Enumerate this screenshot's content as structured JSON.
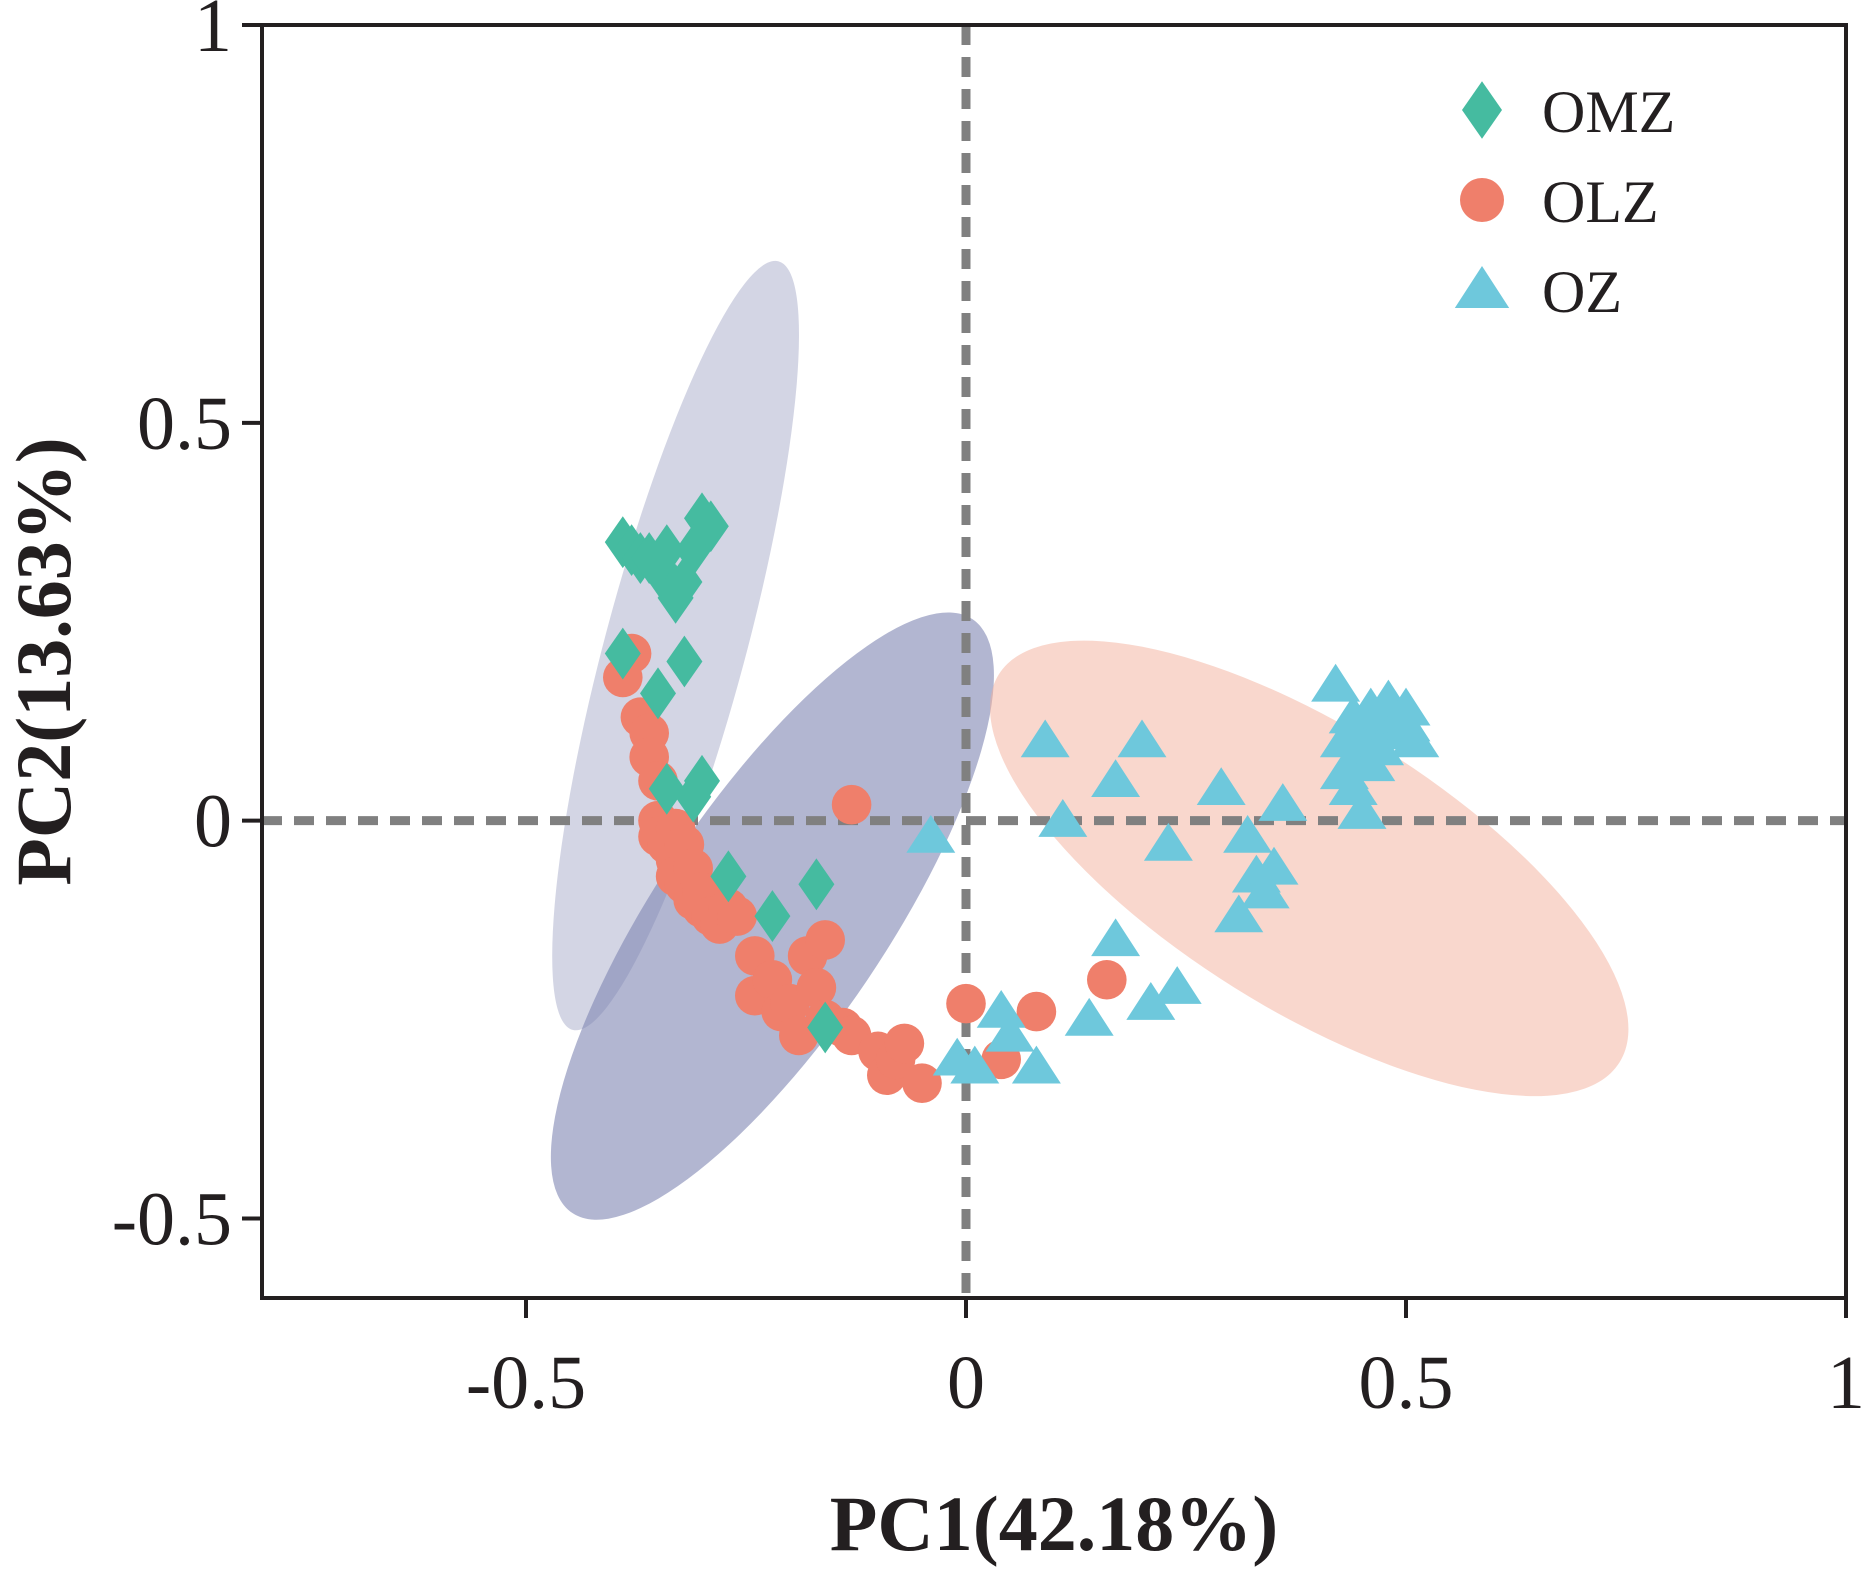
{
  "chart_data": {
    "type": "scatter",
    "title": "",
    "xlabel": "PC1(42.18%)",
    "ylabel": "PC2(13.63%)",
    "xlim": [
      -0.8,
      1.0
    ],
    "ylim": [
      -0.6,
      1.0
    ],
    "xticks": [
      -0.5,
      0,
      0.5,
      1
    ],
    "yticks": [
      -0.5,
      0,
      0.5,
      1
    ],
    "xtick_labels": [
      "-0.5",
      "0",
      "0.5",
      "1"
    ],
    "ytick_labels": [
      "-0.5",
      "0",
      "0.5",
      "1"
    ],
    "grid": false,
    "reference_lines": [
      {
        "axis": "x",
        "value": 0
      },
      {
        "axis": "y",
        "value": 0
      }
    ],
    "legend_position": "top-right",
    "series": [
      {
        "name": "OMZ",
        "marker": "diamond",
        "color": "#45bba0",
        "x": [
          -0.39,
          -0.38,
          -0.37,
          -0.36,
          -0.35,
          -0.34,
          -0.33,
          -0.32,
          -0.3,
          -0.31,
          -0.29,
          -0.34,
          -0.33,
          -0.39,
          -0.35,
          -0.32,
          -0.34,
          -0.31,
          -0.3,
          -0.27,
          -0.22,
          -0.17,
          -0.16
        ],
        "y": [
          0.35,
          0.34,
          0.33,
          0.33,
          0.32,
          0.3,
          0.28,
          0.3,
          0.38,
          0.34,
          0.37,
          0.34,
          0.29,
          0.21,
          0.16,
          0.2,
          0.04,
          0.03,
          0.05,
          -0.07,
          -0.12,
          -0.08,
          -0.26
        ]
      },
      {
        "name": "OLZ",
        "marker": "circle",
        "color": "#ef7f6b",
        "x": [
          -0.38,
          -0.39,
          -0.37,
          -0.36,
          -0.36,
          -0.35,
          -0.35,
          -0.35,
          -0.34,
          -0.33,
          -0.33,
          -0.33,
          -0.32,
          -0.32,
          -0.31,
          -0.31,
          -0.3,
          -0.3,
          -0.29,
          -0.28,
          -0.27,
          -0.26,
          -0.24,
          -0.24,
          -0.22,
          -0.21,
          -0.18,
          -0.16,
          -0.2,
          -0.19,
          -0.17,
          -0.16,
          -0.14,
          -0.13,
          -0.1,
          -0.09,
          -0.08,
          -0.07,
          -0.05,
          -0.13,
          0.0,
          0.04,
          0.08,
          0.16
        ],
        "y": [
          0.21,
          0.18,
          0.13,
          0.11,
          0.08,
          0.05,
          0.0,
          -0.02,
          -0.03,
          -0.05,
          -0.07,
          -0.01,
          -0.08,
          -0.03,
          -0.1,
          -0.06,
          -0.11,
          -0.09,
          -0.12,
          -0.13,
          -0.11,
          -0.12,
          -0.17,
          -0.22,
          -0.2,
          -0.24,
          -0.17,
          -0.15,
          -0.23,
          -0.27,
          -0.21,
          -0.25,
          -0.26,
          -0.27,
          -0.29,
          -0.32,
          -0.3,
          -0.28,
          -0.33,
          0.02,
          -0.23,
          -0.3,
          -0.24,
          -0.2
        ]
      },
      {
        "name": "OZ",
        "marker": "triangle",
        "color": "#6ec8dc",
        "x": [
          -0.04,
          0.09,
          0.11,
          0.17,
          0.2,
          0.23,
          0.29,
          0.32,
          0.33,
          0.34,
          0.35,
          0.36,
          0.31,
          0.17,
          0.14,
          0.21,
          0.24,
          0.04,
          0.05,
          -0.01,
          0.01,
          0.08,
          0.42,
          0.43,
          0.44,
          0.45,
          0.46,
          0.47,
          0.48,
          0.49,
          0.5,
          0.51,
          0.45,
          0.47,
          0.43,
          0.44,
          0.46,
          0.48,
          0.5,
          0.45
        ],
        "y": [
          -0.02,
          0.1,
          0.0,
          0.05,
          0.1,
          -0.03,
          0.04,
          -0.02,
          -0.07,
          -0.09,
          -0.06,
          0.02,
          -0.12,
          -0.15,
          -0.25,
          -0.23,
          -0.21,
          -0.24,
          -0.27,
          -0.3,
          -0.31,
          -0.31,
          0.17,
          0.1,
          0.13,
          0.11,
          0.14,
          0.12,
          0.13,
          0.11,
          0.12,
          0.1,
          0.08,
          0.09,
          0.06,
          0.04,
          0.07,
          0.15,
          0.14,
          0.01
        ]
      }
    ],
    "confidence_ellipses": [
      {
        "group": "OMZ",
        "color": "#a7acc9",
        "opacity": 0.5,
        "center": [
          -0.33,
          0.22
        ],
        "semi_axes": [
          0.08,
          0.5
        ],
        "angle_deg": 15
      },
      {
        "group": "OLZ",
        "color": "#7e86b3",
        "opacity": 0.6,
        "center": [
          -0.22,
          -0.12
        ],
        "semi_axes": [
          0.13,
          0.45
        ],
        "angle_deg": 34
      },
      {
        "group": "OZ",
        "color": "#f4b09c",
        "opacity": 0.5,
        "center": [
          0.39,
          -0.06
        ],
        "semi_axes": [
          0.16,
          0.46
        ],
        "angle_deg": -58
      }
    ]
  }
}
